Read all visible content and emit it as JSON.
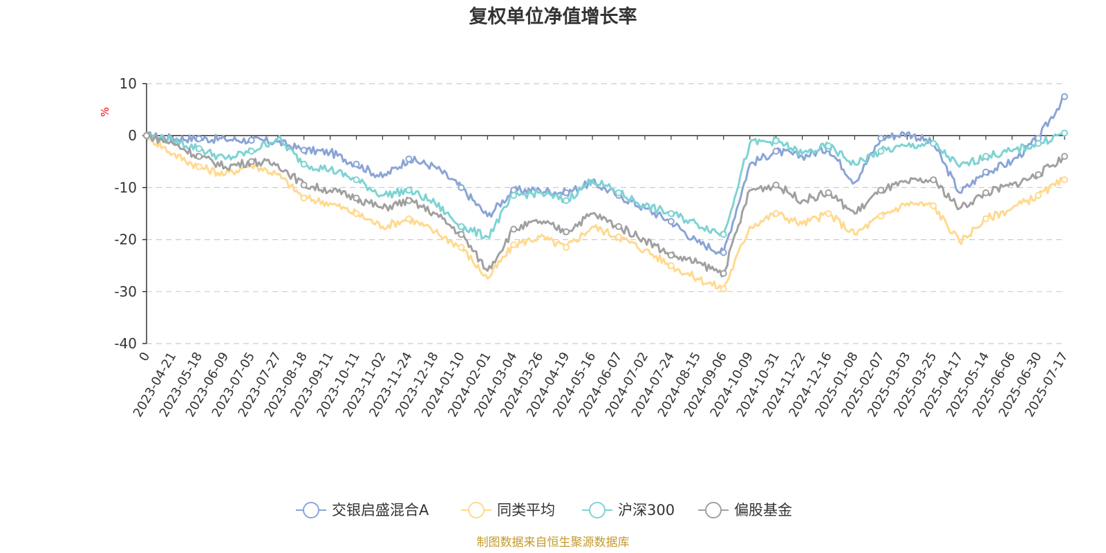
{
  "chart_data": {
    "type": "line",
    "title": "复权单位净值增长率",
    "ylabel": "%",
    "ylim": [
      -40,
      10
    ],
    "yticks": [
      10,
      0,
      -10,
      -20,
      -30,
      -40
    ],
    "grid": true,
    "legend_position": "bottom",
    "categories": [
      "0",
      "2023-04-21",
      "2023-05-18",
      "2023-06-09",
      "2023-07-05",
      "2023-07-27",
      "2023-08-18",
      "2023-09-11",
      "2023-10-11",
      "2023-11-02",
      "2023-11-24",
      "2023-12-18",
      "2024-01-10",
      "2024-02-01",
      "2024-03-04",
      "2024-03-26",
      "2024-04-19",
      "2024-05-16",
      "2024-06-07",
      "2024-07-02",
      "2024-07-24",
      "2024-08-15",
      "2024-09-06",
      "2024-10-09",
      "2024-10-31",
      "2024-11-22",
      "2024-12-16",
      "2025-01-08",
      "2025-02-07",
      "2025-03-03",
      "2025-03-25",
      "2025-04-17",
      "2025-05-14",
      "2025-06-06",
      "2025-06-30",
      "2025-07-17"
    ],
    "series": [
      {
        "name": "交银启盛混合A",
        "color": "#8aa4d6",
        "values": [
          0,
          -0.5,
          -0.6,
          -0.7,
          -0.9,
          -1.2,
          -2.8,
          -3.2,
          -5.5,
          -8.0,
          -4.5,
          -6.0,
          -10.0,
          -15.5,
          -10.5,
          -10.5,
          -11.0,
          -9.0,
          -11.5,
          -14.0,
          -16.5,
          -20.5,
          -22.5,
          -5.5,
          -3.0,
          -4.0,
          -2.5,
          -9.0,
          -0.5,
          0.5,
          -1.5,
          -11.0,
          -7.0,
          -5.0,
          -0.5,
          7.5
        ]
      },
      {
        "name": "同类平均",
        "color": "#ffd98e",
        "values": [
          0,
          -3.5,
          -6.0,
          -7.5,
          -5.5,
          -7.5,
          -12.0,
          -13.0,
          -15.0,
          -17.5,
          -16.0,
          -18.5,
          -21.5,
          -27.5,
          -21.0,
          -19.5,
          -21.5,
          -17.5,
          -19.5,
          -22.0,
          -25.0,
          -27.5,
          -29.5,
          -17.5,
          -15.0,
          -17.0,
          -15.0,
          -19.0,
          -15.5,
          -13.0,
          -13.5,
          -20.5,
          -16.0,
          -14.0,
          -11.5,
          -8.5
        ]
      },
      {
        "name": "沪深300",
        "color": "#7ed3d3",
        "values": [
          0,
          -1.0,
          -2.5,
          -4.5,
          -3.0,
          -0.5,
          -5.5,
          -6.5,
          -8.5,
          -11.5,
          -10.5,
          -13.0,
          -17.5,
          -19.5,
          -11.5,
          -11.0,
          -12.5,
          -8.5,
          -11.0,
          -13.5,
          -15.0,
          -17.0,
          -19.0,
          -1.5,
          -1.0,
          -3.5,
          -2.0,
          -5.5,
          -3.0,
          -2.0,
          -1.5,
          -6.0,
          -4.0,
          -3.0,
          -1.5,
          0.5
        ]
      },
      {
        "name": "偏股基金",
        "color": "#a0a0a0",
        "values": [
          0,
          -1.5,
          -4.0,
          -6.0,
          -5.0,
          -5.5,
          -9.5,
          -10.5,
          -12.0,
          -14.0,
          -12.5,
          -15.0,
          -19.0,
          -26.0,
          -18.0,
          -16.5,
          -18.5,
          -15.0,
          -17.5,
          -20.0,
          -23.0,
          -24.5,
          -26.5,
          -10.5,
          -9.5,
          -12.5,
          -11.0,
          -15.0,
          -10.5,
          -9.0,
          -8.5,
          -14.0,
          -11.0,
          -9.5,
          -7.5,
          -4.0
        ]
      }
    ]
  },
  "footer": {
    "source": "制图数据来自恒生聚源数据库"
  }
}
